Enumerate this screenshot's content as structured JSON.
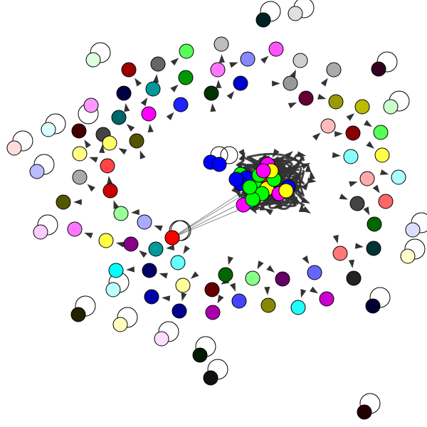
{
  "graph": {
    "nodes": [
      {
        "color": "#002222",
        "loop": true
      },
      {
        "color": "#e0e0e0",
        "loop": true
      },
      {
        "color": "#55ff55",
        "arrow": true
      },
      {
        "color": "#bdbdbd",
        "arrow": true
      },
      {
        "color": "#ff55ff",
        "arrow": true
      },
      {
        "color": "#8888ff",
        "arrow": true
      },
      {
        "color": "#cfcfcf",
        "arrow": true
      },
      {
        "color": "#330022",
        "loop": true
      },
      {
        "color": "#ddffdd",
        "loop": true
      },
      {
        "color": "#990000",
        "arrow": true
      },
      {
        "color": "#666666",
        "arrow": true
      },
      {
        "color": "#009900",
        "arrow": true
      },
      {
        "color": "#ff77ff",
        "arrow": true
      },
      {
        "color": "#0000cc",
        "arrow": true
      },
      {
        "color": "#009999",
        "arrow": true
      },
      {
        "color": "#003300",
        "arrow": true
      },
      {
        "color": "#000044",
        "arrow": true
      },
      {
        "color": "#999999",
        "arrow": true
      },
      {
        "color": "#aaaaaa",
        "arrow": true
      },
      {
        "color": "#660033",
        "arrow": true
      },
      {
        "color": "#999900",
        "arrow": true
      },
      {
        "color": "#bbbb00",
        "arrow": true
      },
      {
        "color": "#ccffcc",
        "loop": true
      },
      {
        "color": "#ff99ff",
        "loop": true
      },
      {
        "color": "#006666",
        "arrow": true
      },
      {
        "color": "#ff00ff",
        "arrow": true
      },
      {
        "color": "#2222ff",
        "arrow": true
      },
      {
        "color": "#ffbbbb",
        "arrow": true
      },
      {
        "color": "#880000",
        "arrow": true
      },
      {
        "color": "#55ff55",
        "arrow": true
      },
      {
        "color": "#ddffff",
        "loop": true
      },
      {
        "color": "#440000",
        "arrow": true
      },
      {
        "color": "#444444",
        "arrow": true
      },
      {
        "color": "#ffff66",
        "arrow": true
      },
      {
        "color": "#555500",
        "arrow": true
      },
      {
        "color": "#ffdddd",
        "loop": true
      },
      {
        "color": "#ffff88",
        "arrow": true
      },
      {
        "color": "#88ffff",
        "arrow": true
      },
      {
        "color": "#ffff44",
        "arrow": true
      },
      {
        "color": "#bbbbff",
        "loop": true
      },
      {
        "color": "#aaaaaa",
        "arrow": true
      },
      {
        "color": "#ff4444",
        "arrow": true
      },
      {
        "color": "#ffaaaa",
        "arrow": true
      },
      {
        "color": "#aaffff",
        "arrow": true
      },
      {
        "color": "#cc0000",
        "arrow": true
      },
      {
        "color": "#555500",
        "arrow": true
      },
      {
        "color": "#444444",
        "arrow": true
      },
      {
        "color": "#ff6666",
        "arrow": true
      },
      {
        "color": "#99ff99",
        "arrow": true
      },
      {
        "color": "#aaaaff",
        "arrow": true
      },
      {
        "color": "#006600",
        "arrow": true
      },
      {
        "color": "#ffccff",
        "loop": true
      },
      {
        "color": "#ff77ff",
        "arrow": true
      },
      {
        "color": "#ddddff",
        "loop": true
      },
      {
        "color": "#003333",
        "arrow": true
      },
      {
        "color": "#ffff44",
        "arrow": true
      },
      {
        "color": "#880088",
        "arrow": true
      },
      {
        "color": "#ff0000",
        "loop": true
      },
      {
        "color": "#009999",
        "arrow": true
      },
      {
        "color": "#ff7777",
        "arrow": true
      },
      {
        "color": "#ffffcc",
        "loop": true
      },
      {
        "color": "#00ffff",
        "arrow": true
      },
      {
        "color": "#000066",
        "arrow": true
      },
      {
        "color": "#66ffff",
        "arrow": true
      },
      {
        "color": "#006600",
        "arrow": true
      },
      {
        "color": "#88ff88",
        "arrow": true
      },
      {
        "color": "#660066",
        "arrow": true
      },
      {
        "color": "#6666ff",
        "arrow": true
      },
      {
        "color": "#222222",
        "arrow": true
      },
      {
        "color": "#bbffff",
        "loop": true
      },
      {
        "color": "#ffff99",
        "arrow": true
      },
      {
        "color": "#660000",
        "arrow": true
      },
      {
        "color": "#4444ff",
        "arrow": true
      },
      {
        "color": "#888800",
        "arrow": true
      },
      {
        "color": "#22ffff",
        "arrow": true
      },
      {
        "color": "#cc00cc",
        "arrow": true
      },
      {
        "color": "#000033",
        "loop": true
      },
      {
        "color": "#0000aa",
        "arrow": true
      },
      {
        "color": "#000088",
        "arrow": true
      },
      {
        "color": "#aa00aa",
        "arrow": true
      },
      {
        "color": "#222200",
        "loop": true
      },
      {
        "color": "#ffffbb",
        "loop": true
      },
      {
        "color": "#ffddff",
        "loop": true
      },
      {
        "color": "#001a00",
        "loop": true
      },
      {
        "color": "#111111",
        "loop": true
      },
      {
        "color": "#220000",
        "loop": true
      }
    ],
    "cluster": {
      "nodes": [
        {
          "color": "#0000ff"
        },
        {
          "color": "#0000ff"
        },
        {
          "color": "#00ff00"
        },
        {
          "color": "#ffff00"
        },
        {
          "color": "#ff00ff"
        },
        {
          "color": "#ff0000"
        },
        {
          "color": "#00ff00"
        },
        {
          "color": "#0000ff"
        },
        {
          "color": "#ffff00"
        },
        {
          "color": "#00ff00"
        },
        {
          "color": "#ff00ff"
        },
        {
          "color": "#00ffff"
        },
        {
          "color": "#0000ff"
        },
        {
          "color": "#00ff00"
        },
        {
          "color": "#ffff00"
        },
        {
          "color": "#0000ff"
        },
        {
          "color": "#ff00ff"
        },
        {
          "color": "#00ff00"
        },
        {
          "color": "#0000ff"
        },
        {
          "color": "#ffff00"
        },
        {
          "color": "#00ff00"
        },
        {
          "color": "#ff00ff"
        },
        {
          "color": "#00ff00"
        }
      ]
    },
    "hub": {
      "color": "#ff0000"
    },
    "colors": {
      "background": "#ffffff",
      "node_stroke": "#000000",
      "edge": "#333333",
      "arrowhead": "#333333",
      "loop": "#000000"
    }
  }
}
